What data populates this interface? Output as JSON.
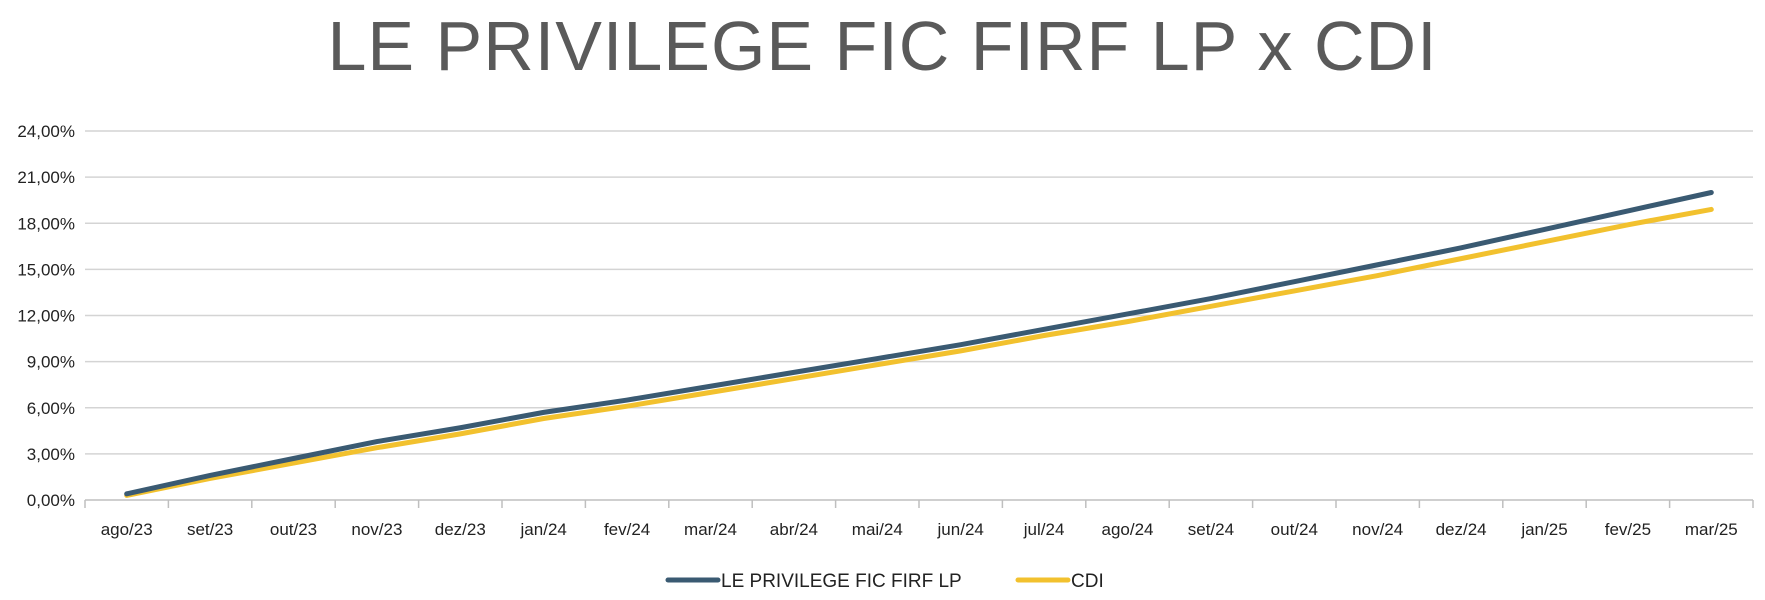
{
  "title": "LE PRIVILEGE FIC FIRF LP x CDI",
  "chart_data": {
    "type": "line",
    "title": "LE PRIVILEGE FIC FIRF LP x CDI",
    "categories": [
      "ago/23",
      "set/23",
      "out/23",
      "nov/23",
      "dez/23",
      "jan/24",
      "fev/24",
      "mar/24",
      "abr/24",
      "mai/24",
      "jun/24",
      "jul/24",
      "ago/24",
      "set/24",
      "out/24",
      "nov/24",
      "dez/24",
      "jan/25",
      "fev/25",
      "mar/25"
    ],
    "y_ticks": [
      "0,00%",
      "3,00%",
      "6,00%",
      "9,00%",
      "12,00%",
      "15,00%",
      "18,00%",
      "21,00%",
      "24,00%"
    ],
    "ylim": [
      0,
      24
    ],
    "y_unit": "%",
    "grid": true,
    "legend_position": "bottom",
    "series": [
      {
        "name": "LE PRIVILEGE FIC FIRF LP",
        "color": "#3a5a72",
        "values": [
          0.4,
          1.6,
          2.7,
          3.8,
          4.7,
          5.7,
          6.5,
          7.4,
          8.3,
          9.2,
          10.1,
          11.1,
          12.1,
          13.1,
          14.2,
          15.3,
          16.4,
          17.6,
          18.8,
          20.0
        ]
      },
      {
        "name": "CDI",
        "color": "#f2c12e",
        "values": [
          0.3,
          1.4,
          2.4,
          3.4,
          4.3,
          5.3,
          6.1,
          7.0,
          7.9,
          8.8,
          9.7,
          10.7,
          11.6,
          12.6,
          13.6,
          14.6,
          15.7,
          16.8,
          17.9,
          18.9
        ]
      }
    ]
  }
}
